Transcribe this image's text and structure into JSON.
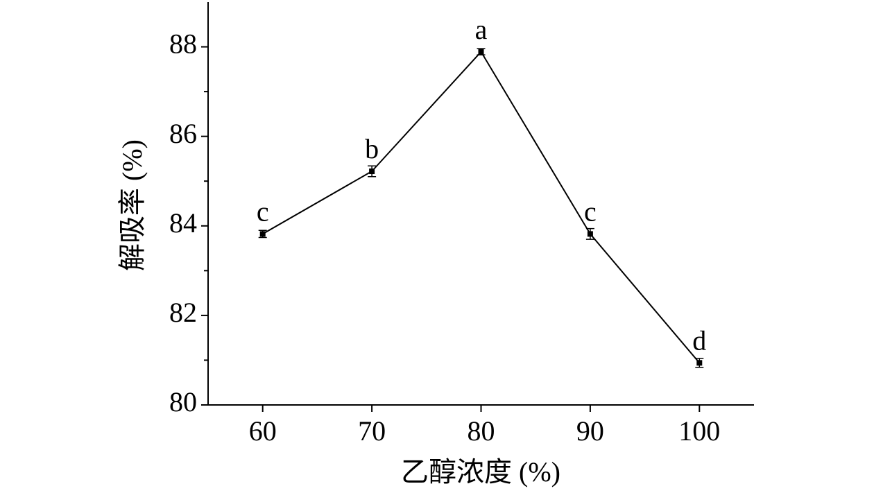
{
  "chart_data": {
    "type": "line",
    "x_label": "乙醇浓度 (%)",
    "y_label": "解吸率 (%)",
    "x": [
      60,
      70,
      80,
      90,
      100
    ],
    "series": [
      {
        "color": "#000000",
        "values": [
          83.82,
          85.22,
          87.89,
          83.82,
          80.94
        ],
        "errors": [
          0.08,
          0.12,
          0.07,
          0.12,
          0.1
        ],
        "point_labels": [
          "c",
          "b",
          "a",
          "c",
          "d"
        ]
      }
    ],
    "xlim": [
      55,
      105
    ],
    "xticks": [
      60,
      70,
      80,
      90,
      100
    ],
    "ylim": [
      80,
      89
    ],
    "yticks": [
      80,
      82,
      84,
      86,
      88
    ],
    "yminorticks": [
      81,
      83,
      85,
      87
    ],
    "grid": false
  }
}
